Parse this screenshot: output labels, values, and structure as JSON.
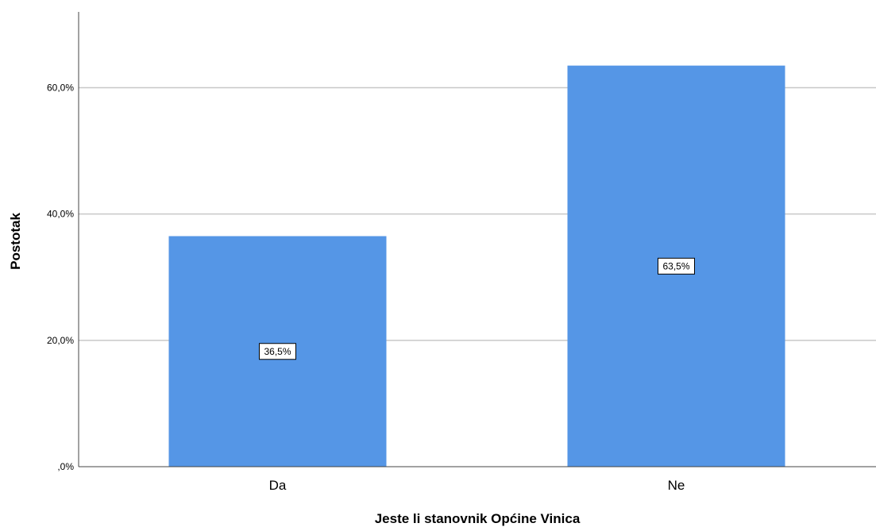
{
  "chart_data": {
    "type": "bar",
    "categories": [
      "Da",
      "Ne"
    ],
    "values": [
      36.5,
      63.5
    ],
    "data_labels": [
      "36,5%",
      "63,5%"
    ],
    "xlabel": "Jeste li stanovnik Općine Vinica",
    "ylabel": "Postotak",
    "ylim": [
      0,
      72
    ],
    "yticks": [
      0,
      20,
      40,
      60
    ],
    "ytick_labels": [
      ",0%",
      "20,0%",
      "40,0%",
      "60,0%"
    ],
    "grid": true,
    "bar_color": "#5596e6",
    "grid_color": "#c8c8c8"
  }
}
